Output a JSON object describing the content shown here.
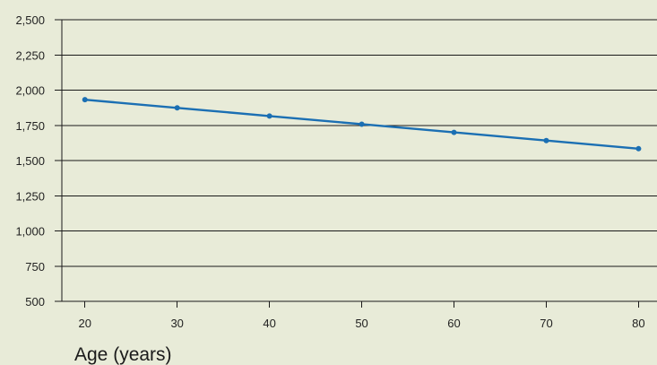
{
  "chart_data": {
    "type": "line",
    "title": "",
    "xlabel": "Age (years)",
    "ylabel": "",
    "x": [
      20,
      30,
      40,
      50,
      60,
      70,
      80
    ],
    "series": [
      {
        "values": [
          1932,
          1874,
          1816,
          1758,
          1700,
          1642,
          1584
        ]
      }
    ],
    "xlim": [
      17.5,
      82
    ],
    "ylim": [
      500,
      2500
    ],
    "x_ticks": [
      20,
      30,
      40,
      50,
      60,
      70,
      80
    ],
    "x_tick_labels": [
      "20",
      "30",
      "40",
      "50",
      "60",
      "70",
      "80"
    ],
    "y_ticks": [
      500,
      750,
      1000,
      1250,
      1500,
      1750,
      2000,
      2250,
      2500
    ],
    "y_tick_labels": [
      "500",
      "750",
      "1,000",
      "1,250",
      "1,500",
      "1,750",
      "2,000",
      "2,250",
      "2,500"
    ],
    "grid": true,
    "legend": "none",
    "colors": {
      "background": "#e8ebd8",
      "line": "#1b6fb3",
      "grid": "#1a1a1a",
      "text": "#222222"
    }
  }
}
